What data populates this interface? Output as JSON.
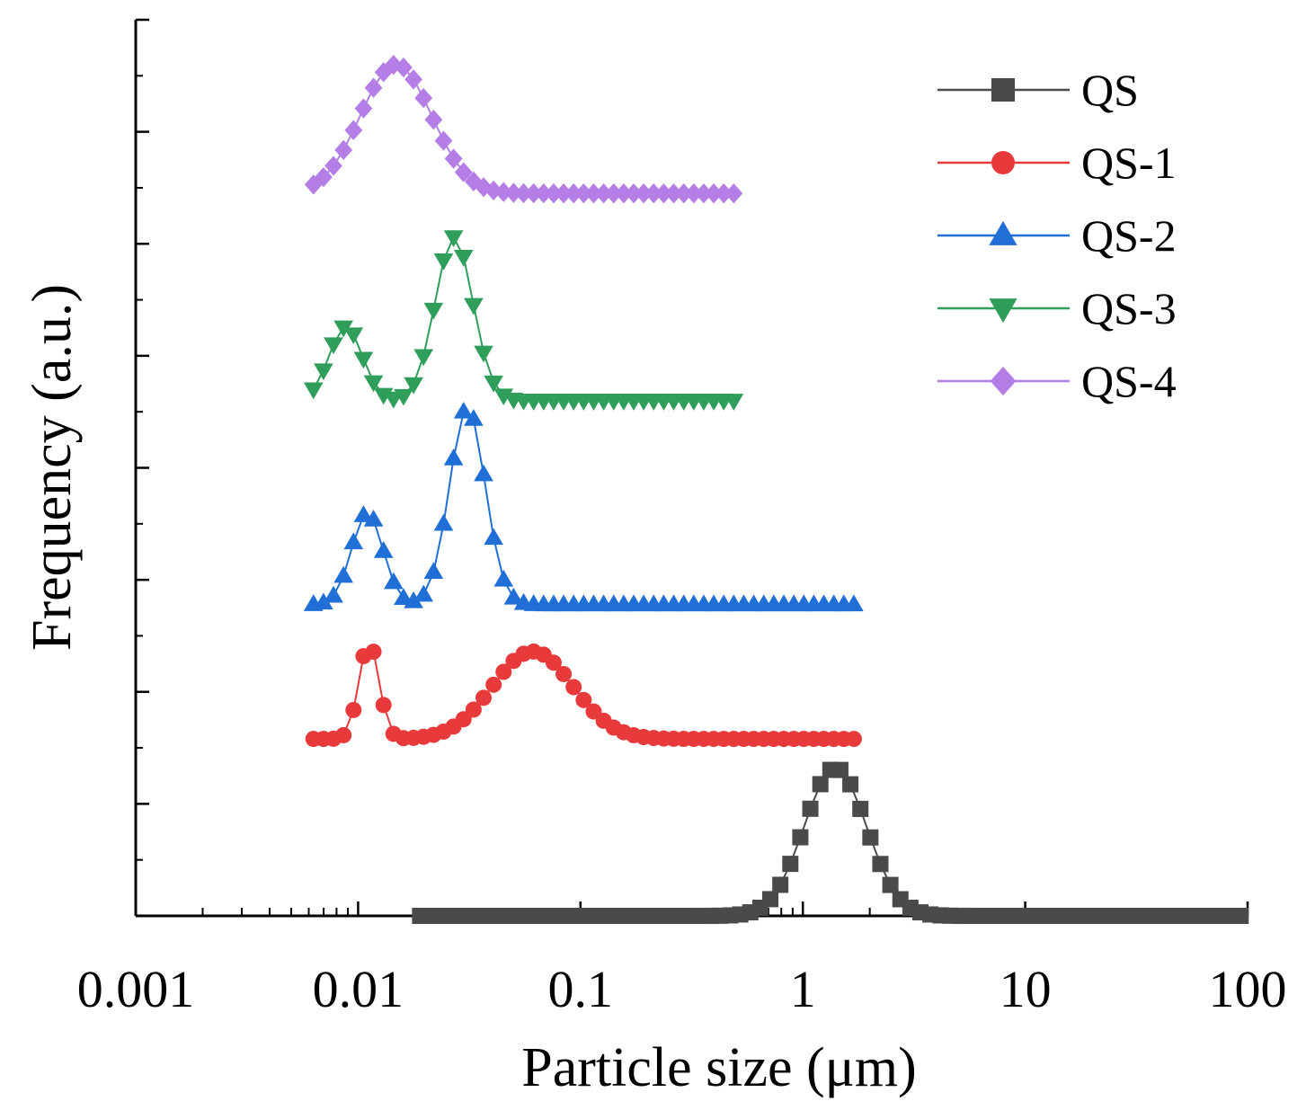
{
  "chart_data": {
    "type": "line",
    "title": "",
    "xlabel": "Particle size (μm)",
    "ylabel": "Frequency (a.u.)",
    "x_scale": "log",
    "xlim": [
      0.001,
      100
    ],
    "ylim": [
      0,
      8
    ],
    "x_ticks": [
      "0.001",
      "0.01",
      "0.1",
      "1",
      "10",
      "100"
    ],
    "y_tick_labels": "none",
    "grid": false,
    "legend_position": "top-right",
    "stacked_offset_curves": true,
    "series": [
      {
        "name": "QS",
        "color": "#4a4a4a",
        "marker": "square",
        "range": [
          0.019,
          100
        ],
        "baseline": 0,
        "peaks": [
          {
            "center": 1.4,
            "sigma_log10": 0.14,
            "height": 1.32
          }
        ]
      },
      {
        "name": "QS-1",
        "color": "#e8393b",
        "marker": "circle",
        "range": [
          0.0063,
          1.85
        ],
        "baseline": 1.58,
        "peaks": [
          {
            "center": 0.0112,
            "sigma_log10": 0.045,
            "height": 0.86
          },
          {
            "center": 0.061,
            "sigma_log10": 0.18,
            "height": 0.78
          }
        ]
      },
      {
        "name": "QS-2",
        "color": "#1f6fd6",
        "marker": "triangle-up",
        "range": [
          0.0063,
          1.85
        ],
        "baseline": 2.78,
        "peaks": [
          {
            "center": 0.011,
            "sigma_log10": 0.07,
            "height": 0.82
          },
          {
            "center": 0.031,
            "sigma_log10": 0.08,
            "height": 1.76
          }
        ]
      },
      {
        "name": "QS-3",
        "color": "#2e9e5a",
        "marker": "triangle-down",
        "range": [
          0.0063,
          0.52
        ],
        "baseline": 4.6,
        "peaks": [
          {
            "center": 0.0088,
            "sigma_log10": 0.075,
            "height": 0.66
          },
          {
            "center": 0.027,
            "sigma_log10": 0.085,
            "height": 1.46
          }
        ]
      },
      {
        "name": "QS-4",
        "color": "#b57ee6",
        "marker": "diamond",
        "range": [
          0.0063,
          0.52
        ],
        "baseline": 6.45,
        "peaks": [
          {
            "center": 0.0148,
            "sigma_log10": 0.16,
            "height": 1.15
          }
        ]
      }
    ]
  }
}
